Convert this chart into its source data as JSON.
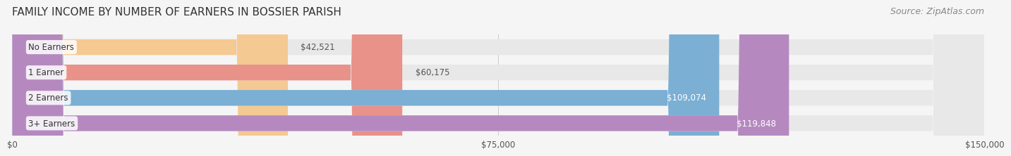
{
  "title": "FAMILY INCOME BY NUMBER OF EARNERS IN BOSSIER PARISH",
  "source": "Source: ZipAtlas.com",
  "categories": [
    "No Earners",
    "1 Earner",
    "2 Earners",
    "3+ Earners"
  ],
  "values": [
    42521,
    60175,
    109074,
    119848
  ],
  "bar_colors": [
    "#f5c992",
    "#e8928a",
    "#7bafd4",
    "#b589c0"
  ],
  "bar_bg_color": "#e8e8e8",
  "label_colors": [
    "#555555",
    "#555555",
    "#ffffff",
    "#ffffff"
  ],
  "xlim": [
    0,
    150000
  ],
  "xticks": [
    0,
    75000,
    150000
  ],
  "xtick_labels": [
    "$0",
    "$75,000",
    "$150,000"
  ],
  "value_labels": [
    "$42,521",
    "$60,175",
    "$109,074",
    "$119,848"
  ],
  "background_color": "#f5f5f5",
  "bar_background_color": "#e0e0e0",
  "title_fontsize": 11,
  "source_fontsize": 9,
  "bar_height": 0.62,
  "figsize": [
    14.06,
    2.33
  ]
}
